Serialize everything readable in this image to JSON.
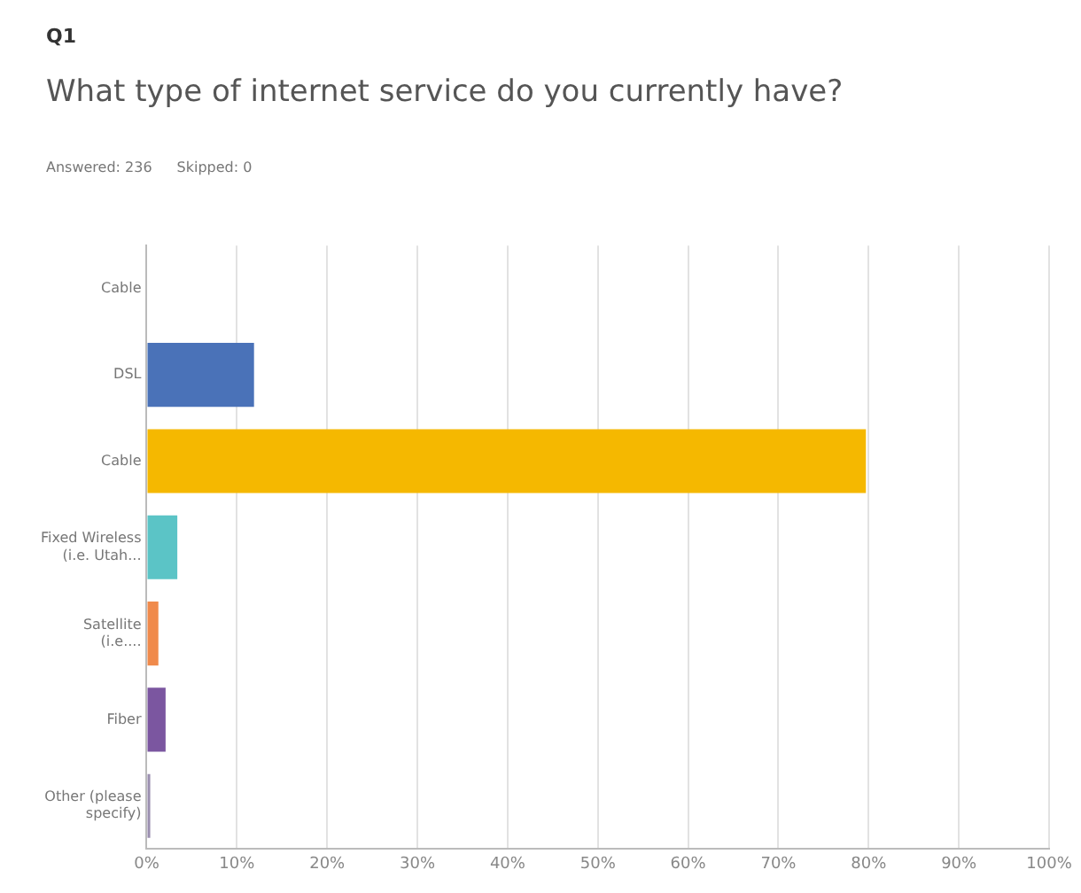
{
  "chart_data": {
    "type": "bar",
    "orientation": "horizontal",
    "title": "What type of internet service do you currently have?",
    "annotations": [
      "Q1",
      "Answered: 236",
      "Skipped: 0"
    ],
    "categories": [
      "Cable",
      "DSL",
      "Cable",
      "Fixed Wireless (i.e. Utah...",
      "Satellite (i.e....",
      "Fiber",
      "Other (please specify)"
    ],
    "values": [
      0,
      11.9,
      79.7,
      3.4,
      1.3,
      2.1,
      0.4
    ],
    "colors": [
      "#d0d0d0",
      "#4a72b8",
      "#f5b800",
      "#5bc4c6",
      "#f08a4b",
      "#7b56a0",
      "#9b8fb0"
    ],
    "xlim": [
      0,
      100
    ],
    "xticks": [
      {
        "value": 0,
        "label": "0%"
      },
      {
        "value": 10,
        "label": "10%"
      },
      {
        "value": 20,
        "label": "20%"
      },
      {
        "value": 30,
        "label": "30%"
      },
      {
        "value": 40,
        "label": "40%"
      },
      {
        "value": 50,
        "label": "50%"
      },
      {
        "value": 60,
        "label": "60%"
      },
      {
        "value": 70,
        "label": "70%"
      },
      {
        "value": 80,
        "label": "80%"
      },
      {
        "value": 90,
        "label": "90%"
      },
      {
        "value": 100,
        "label": "100%"
      }
    ],
    "grid": "x",
    "legend": false
  }
}
